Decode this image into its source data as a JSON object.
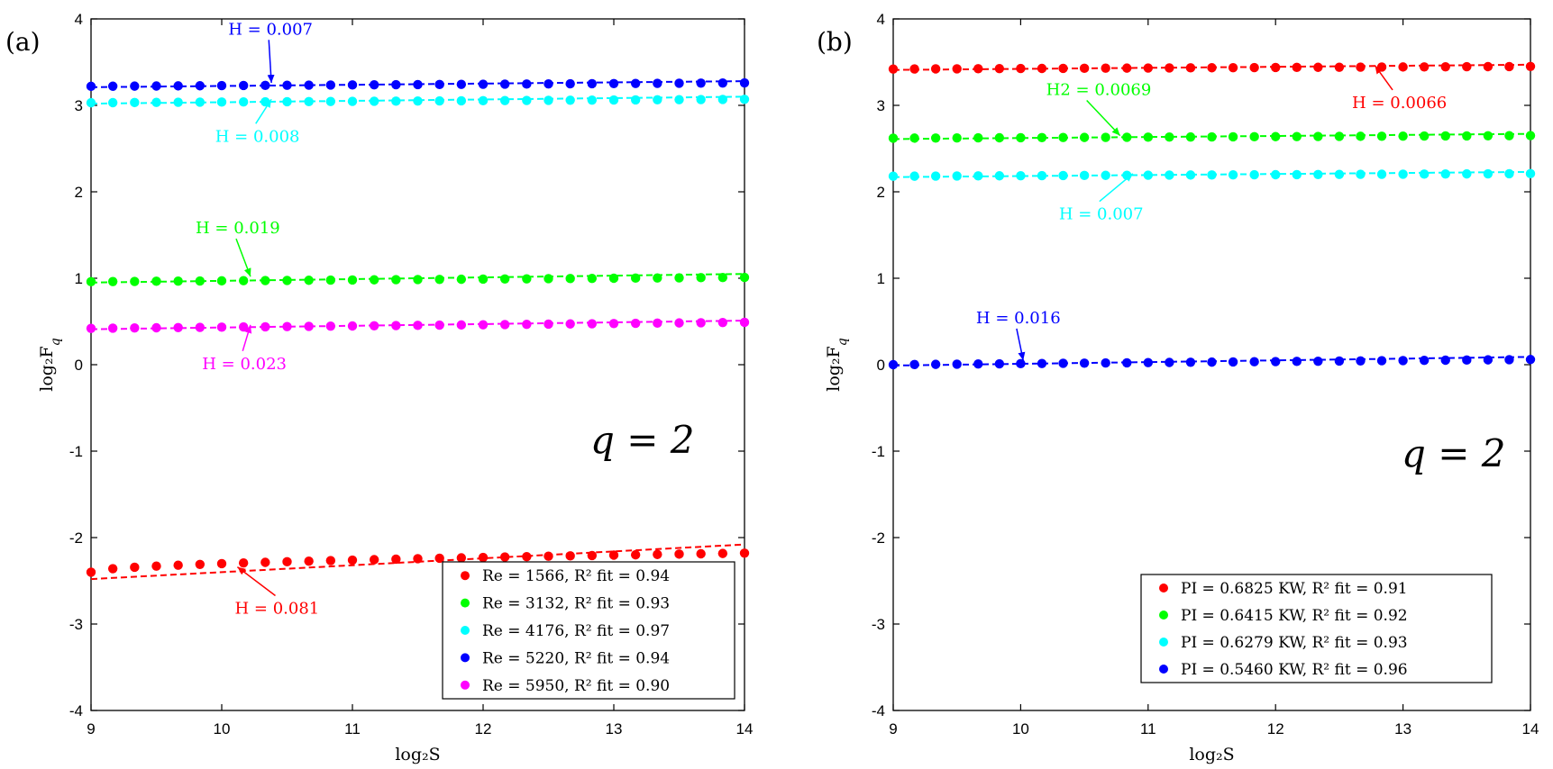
{
  "chart_data": [
    {
      "type": "scatter",
      "panel_label": "(a)",
      "q_label": "q = 2",
      "xlabel": "log₂S",
      "ylabel": "log₂F",
      "ylabel_sub": "q",
      "xlim": [
        9,
        14
      ],
      "ylim": [
        -4,
        4
      ],
      "xticks": [
        "9",
        "10",
        "11",
        "12",
        "13",
        "14"
      ],
      "yticks": [
        "-4",
        "-3",
        "-2",
        "-1",
        "0",
        "1",
        "2",
        "3",
        "4"
      ],
      "legend_position": "bottom-right",
      "series": [
        {
          "name": "Re = 1566, R² fit = 0.94",
          "color": "#ff0000",
          "y0": -2.4,
          "y_end": -2.18,
          "curve": "rising",
          "fit": [
            -2.48,
            -2.08
          ],
          "annotation": "H = 0.081",
          "annot_point": [
            10.12,
            -2.34
          ],
          "annot_text_at": [
            10.1,
            -2.88
          ]
        },
        {
          "name": "Re = 3132, R² fit = 0.93",
          "color": "#00ff00",
          "y0": 0.96,
          "y_end": 1.01,
          "curve": "flat",
          "fit": [
            0.95,
            1.05
          ],
          "annotation": "H = 0.019",
          "annot_point": [
            10.22,
            1.02
          ],
          "annot_text_at": [
            9.8,
            1.52
          ]
        },
        {
          "name": "Re = 4176, R² fit = 0.97",
          "color": "#00ffff",
          "y0": 3.03,
          "y_end": 3.07,
          "curve": "flat",
          "fit": [
            3.02,
            3.1
          ],
          "annotation": "H = 0.008",
          "annot_point": [
            10.38,
            3.07
          ],
          "annot_text_at": [
            9.95,
            2.58
          ]
        },
        {
          "name": "Re = 5220, R² fit = 0.94",
          "color": "#0000ff",
          "y0": 3.22,
          "y_end": 3.26,
          "curve": "flat",
          "fit": [
            3.21,
            3.28
          ],
          "annotation": "H = 0.007",
          "annot_point": [
            10.38,
            3.26
          ],
          "annot_text_at": [
            10.05,
            3.82
          ]
        },
        {
          "name": "Re = 5950, R² fit = 0.90",
          "color": "#ff00ff",
          "y0": 0.42,
          "y_end": 0.49,
          "curve": "flat",
          "fit": [
            0.41,
            0.51
          ],
          "annotation": "H = 0.023",
          "annot_point": [
            10.22,
            0.46
          ],
          "annot_text_at": [
            9.85,
            -0.05
          ]
        }
      ]
    },
    {
      "type": "scatter",
      "panel_label": "(b)",
      "q_label": "q = 2",
      "xlabel": "log₂S",
      "ylabel": "log₂F",
      "ylabel_sub": "q",
      "xlim": [
        9,
        14
      ],
      "ylim": [
        -4,
        4
      ],
      "xticks": [
        "9",
        "10",
        "11",
        "12",
        "13",
        "14"
      ],
      "yticks": [
        "-4",
        "-3",
        "-2",
        "-1",
        "0",
        "1",
        "2",
        "3",
        "4"
      ],
      "legend_position": "bottom-right",
      "series": [
        {
          "name": "PI = 0.6825 KW, R² fit = 0.91",
          "color": "#ff0000",
          "y0": 3.42,
          "y_end": 3.45,
          "curve": "flat",
          "fit": [
            3.41,
            3.47
          ],
          "annotation": "H = 0.0066",
          "annot_point": [
            12.78,
            3.46
          ],
          "annot_text_at": [
            12.6,
            2.97
          ]
        },
        {
          "name": "PI = 0.6415 KW, R² fit = 0.92",
          "color": "#00ff00",
          "y0": 2.62,
          "y_end": 2.65,
          "curve": "flat",
          "fit": [
            2.61,
            2.67
          ],
          "annotation": "H2 = 0.0069",
          "annot_point": [
            10.78,
            2.65
          ],
          "annot_text_at": [
            10.2,
            3.12
          ]
        },
        {
          "name": "PI = 0.6279 KW, R² fit = 0.93",
          "color": "#00ffff",
          "y0": 2.18,
          "y_end": 2.21,
          "curve": "flat",
          "fit": [
            2.17,
            2.23
          ],
          "annotation": "H = 0.007",
          "annot_point": [
            10.88,
            2.21
          ],
          "annot_text_at": [
            10.3,
            1.68
          ]
        },
        {
          "name": "PI = 0.5460 KW, R² fit = 0.96",
          "color": "#0000ff",
          "y0": 0.0,
          "y_end": 0.06,
          "curve": "flat",
          "fit": [
            -0.01,
            0.09
          ],
          "annotation": "H = 0.016",
          "annot_point": [
            10.02,
            0.05
          ],
          "annot_text_at": [
            9.65,
            0.48
          ]
        }
      ]
    }
  ]
}
